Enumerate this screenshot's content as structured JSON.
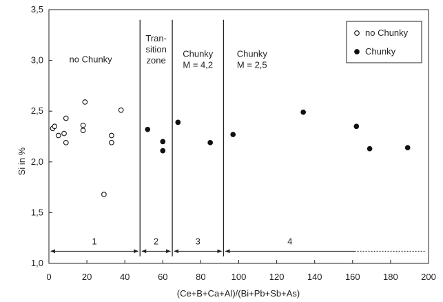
{
  "chart_data": {
    "type": "scatter",
    "xlabel": "(Ce+B+Ca+Al)/(Bi+Pb+Sb+As)",
    "ylabel": "Si in %",
    "xlim": [
      0,
      200
    ],
    "ylim": [
      1.0,
      3.5
    ],
    "x_ticks": [
      0,
      20,
      40,
      60,
      80,
      100,
      120,
      140,
      160,
      180,
      200
    ],
    "y_ticks": [
      1.0,
      1.5,
      2.0,
      2.5,
      3.0,
      3.5
    ],
    "x_tick_labels": [
      "0",
      "20",
      "40",
      "60",
      "80",
      "100",
      "120",
      "140",
      "160",
      "180",
      "200"
    ],
    "y_tick_labels": [
      "1,0",
      "1,5",
      "2,0",
      "2,5",
      "3,0",
      "3,5"
    ],
    "grid": false,
    "legend_position": "top-right",
    "series": [
      {
        "name": "no Chunky",
        "marker": "open-circle",
        "color": "#111111",
        "points": [
          [
            2,
            2.33
          ],
          [
            3,
            2.35
          ],
          [
            5,
            2.26
          ],
          [
            8,
            2.28
          ],
          [
            9,
            2.19
          ],
          [
            9,
            2.43
          ],
          [
            18,
            2.31
          ],
          [
            18,
            2.36
          ],
          [
            19,
            2.59
          ],
          [
            29,
            1.68
          ],
          [
            33,
            2.19
          ],
          [
            33,
            2.26
          ],
          [
            38,
            2.51
          ]
        ]
      },
      {
        "name": "Chunky",
        "marker": "filled-circle",
        "color": "#111111",
        "points": [
          [
            52,
            2.32
          ],
          [
            60,
            2.2
          ],
          [
            60,
            2.11
          ],
          [
            68,
            2.39
          ],
          [
            85,
            2.19
          ],
          [
            97,
            2.27
          ],
          [
            134,
            2.49
          ],
          [
            162,
            2.35
          ],
          [
            169,
            2.13
          ],
          [
            189,
            2.14
          ]
        ]
      }
    ],
    "zone_boundaries": [
      48,
      65,
      92
    ],
    "zone_labels": [
      {
        "lines": [
          "no Chunky"
        ],
        "x": 22,
        "y": 3.0
      },
      {
        "lines": [
          "Tran-",
          "sition",
          "zone"
        ],
        "x": 56.5,
        "y": 3.1
      },
      {
        "lines": [
          "Chunky",
          "M = 4,2"
        ],
        "x": 78.5,
        "y": 3.0
      },
      {
        "lines": [
          "Chunky",
          "M = 2,5"
        ],
        "x": 107,
        "y": 3.0
      }
    ],
    "zone_ranges": [
      {
        "label": "1",
        "from": 1,
        "to": 47
      },
      {
        "label": "2",
        "from": 49,
        "to": 64
      },
      {
        "label": "3",
        "from": 66,
        "to": 91
      },
      {
        "label": "4",
        "from": 93,
        "to": 161,
        "extends_to": 198
      }
    ],
    "range_y": 1.12
  }
}
